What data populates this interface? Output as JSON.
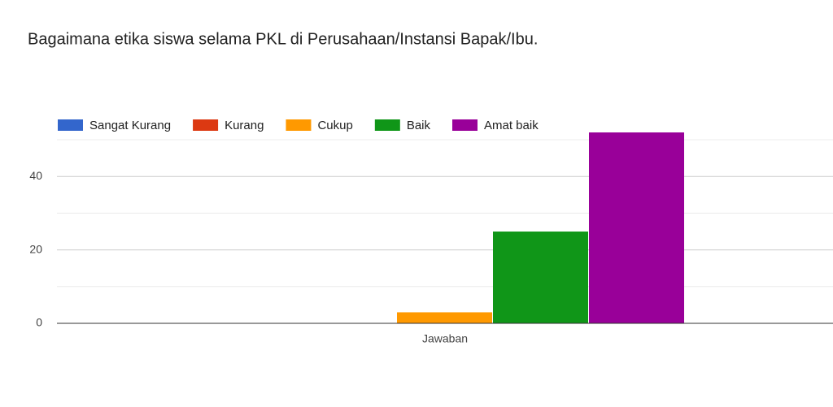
{
  "chart_data": {
    "type": "bar",
    "title": "Bagaimana etika siswa selama PKL di Perusahaan/Instansi Bapak/Ibu.",
    "categories": [
      "Jawaban"
    ],
    "series": [
      {
        "name": "Sangat Kurang",
        "color": "#3366cc",
        "values": [
          0
        ]
      },
      {
        "name": "Kurang",
        "color": "#dc3912",
        "values": [
          0
        ]
      },
      {
        "name": "Cukup",
        "color": "#ff9900",
        "values": [
          3
        ]
      },
      {
        "name": "Baik",
        "color": "#109618",
        "values": [
          25
        ]
      },
      {
        "name": "Amat baik",
        "color": "#990099",
        "values": [
          52
        ]
      }
    ],
    "ylim": [
      0,
      52
    ],
    "yticks": [
      0,
      20,
      40
    ],
    "minor_grid": [
      10,
      30,
      50
    ],
    "grid": true,
    "legend": "top"
  }
}
